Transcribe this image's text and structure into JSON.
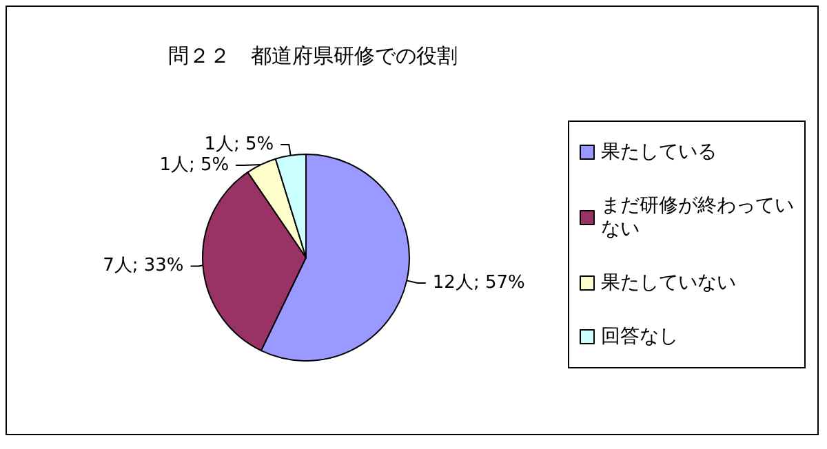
{
  "chart_data": {
    "type": "pie",
    "title": "問２２　都道府県研修での役割",
    "categories": [
      "果たしている",
      "まだ研修が終わっていない",
      "果たしていない",
      "回答なし"
    ],
    "values": [
      12,
      7,
      1,
      1
    ],
    "colors": [
      "#9999ff",
      "#993366",
      "#ffffcc",
      "#ccffff"
    ],
    "value_labels": [
      "12人; 57%",
      "7人; 33%",
      "1人; 5%",
      "1人; 5%"
    ],
    "legend": "right"
  }
}
